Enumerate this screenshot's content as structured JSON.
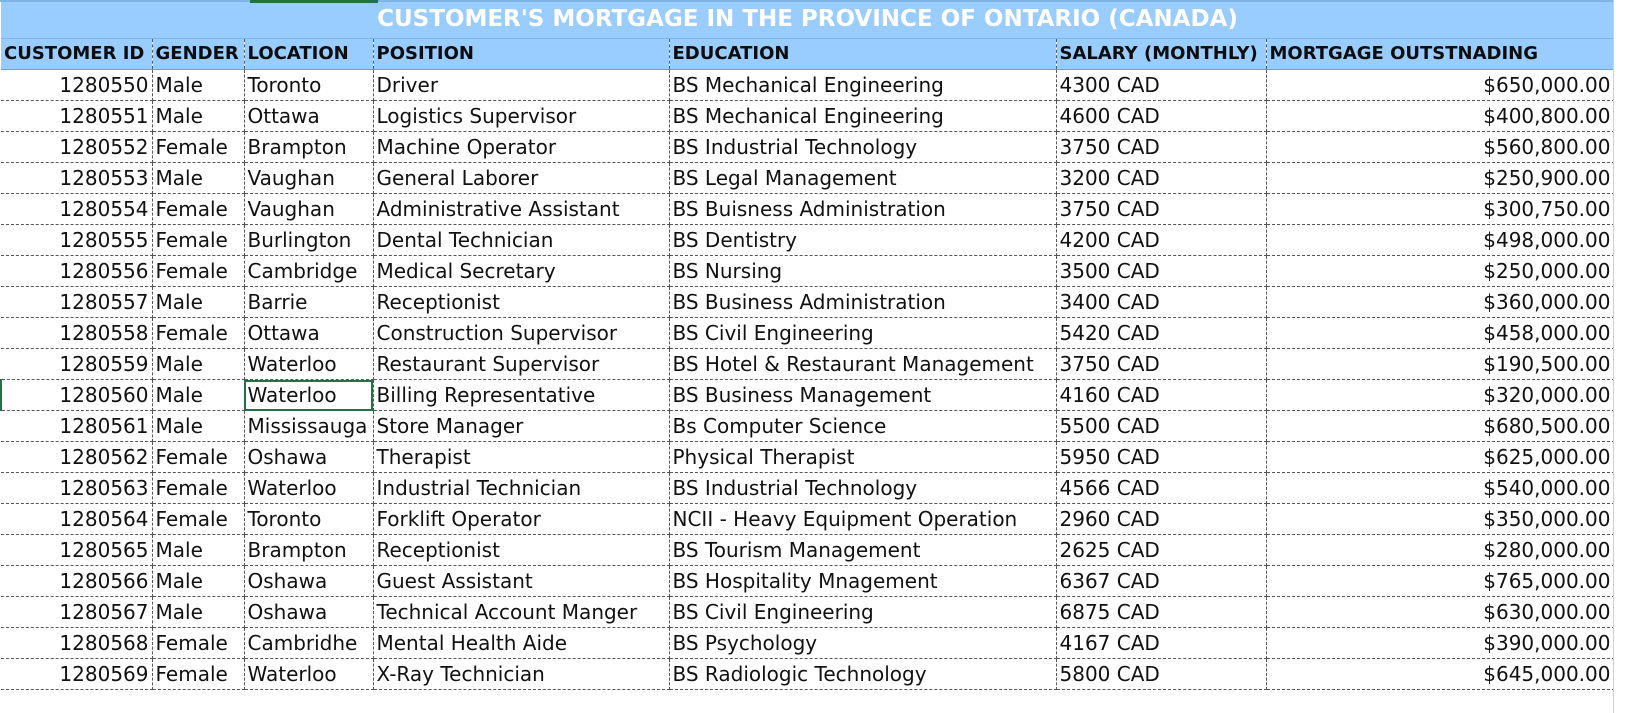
{
  "sheet": {
    "title": "CUSTOMER'S MORTGAGE IN THE PROVINCE OF ONTARIO (CANADA)",
    "headers": [
      "CUSTOMER ID",
      "GENDER",
      "LOCATION",
      "POSITION",
      "EDUCATION",
      "SALARY (MONTHLY)",
      "MORTGAGE OUTSTNADING"
    ],
    "rows": [
      [
        "1280550",
        "Male",
        "Toronto",
        "Driver",
        "BS Mechanical Engineering",
        "4300 CAD",
        "$650,000.00"
      ],
      [
        "1280551",
        "Male",
        "Ottawa",
        "Logistics Supervisor",
        "BS Mechanical Engineering",
        "4600 CAD",
        "$400,800.00"
      ],
      [
        "1280552",
        "Female",
        "Brampton",
        "Machine Operator",
        "BS Industrial Technology",
        "3750 CAD",
        "$560,800.00"
      ],
      [
        "1280553",
        "Male",
        "Vaughan",
        "General Laborer",
        "BS Legal Management",
        "3200 CAD",
        "$250,900.00"
      ],
      [
        "1280554",
        "Female",
        "Vaughan",
        "Administrative Assistant",
        "BS Buisness Administration",
        "3750 CAD",
        "$300,750.00"
      ],
      [
        "1280555",
        "Female",
        "Burlington",
        "Dental Technician",
        "BS Dentistry",
        "4200 CAD",
        "$498,000.00"
      ],
      [
        "1280556",
        "Female",
        "Cambridge",
        "Medical Secretary",
        "BS Nursing",
        "3500 CAD",
        "$250,000.00"
      ],
      [
        "1280557",
        "Male",
        "Barrie",
        "Receptionist",
        "BS Business Administration",
        "3400 CAD",
        "$360,000.00"
      ],
      [
        "1280558",
        "Female",
        "Ottawa",
        "Construction Supervisor",
        "BS Civil Engineering",
        "5420 CAD",
        "$458,000.00"
      ],
      [
        "1280559",
        "Male",
        "Waterloo",
        "Restaurant Supervisor",
        "BS  Hotel & Restaurant Management",
        "3750 CAD",
        "$190,500.00"
      ],
      [
        "1280560",
        "Male",
        "Waterloo",
        "Billing Representative",
        "BS  Business Management",
        "4160 CAD",
        "$320,000.00"
      ],
      [
        "1280561",
        "Male",
        "Mississauga",
        "Store Manager",
        "Bs  Computer Science",
        "5500 CAD",
        "$680,500.00"
      ],
      [
        "1280562",
        "Female",
        "Oshawa",
        "Therapist",
        "Physical Therapist",
        "5950 CAD",
        "$625,000.00"
      ],
      [
        "1280563",
        "Female",
        "Waterloo",
        "Industrial Technician",
        "BS Industrial Technology",
        "4566 CAD",
        "$540,000.00"
      ],
      [
        "1280564",
        "Female",
        "Toronto",
        "Forklift Operator",
        "NCII  - Heavy Equipment Operation",
        "2960 CAD",
        "$350,000.00"
      ],
      [
        "1280565",
        "Male",
        "Brampton",
        "Receptionist",
        "BS  Tourism Management",
        "2625 CAD",
        "$280,000.00"
      ],
      [
        "1280566",
        "Male",
        "Oshawa",
        "Guest Assistant",
        "BS Hospitality Mnagement",
        "6367 CAD",
        "$765,000.00"
      ],
      [
        "1280567",
        "Male",
        "Oshawa",
        "Technical Account Manger",
        "BS Civil Engineering",
        "6875 CAD",
        "$630,000.00"
      ],
      [
        "1280568",
        "Female",
        "Cambridhe",
        "Mental Health Aide",
        "BS Psychology",
        "4167 CAD",
        "$390,000.00"
      ],
      [
        "1280569",
        "Female",
        "Waterloo",
        "X-Ray Technician",
        "BS Radiologic Technology",
        "5800 CAD",
        "$645,000.00"
      ]
    ],
    "selected_cell": {
      "row": 10,
      "col": 2
    },
    "colors": {
      "header_fill": "#99CCFF",
      "title_text": "#FFFFFF",
      "selection": "#217346"
    }
  }
}
